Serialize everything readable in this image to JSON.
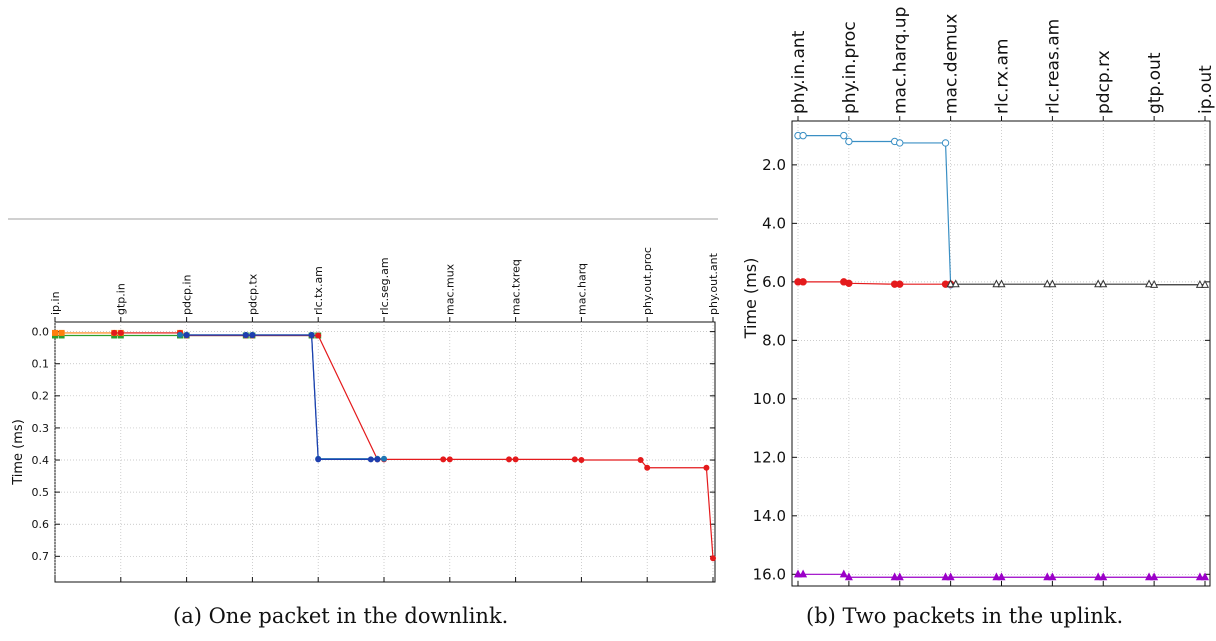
{
  "captions": {
    "a": "(a) One packet in the downlink.",
    "b": "(b) Two packets in the uplink."
  },
  "chart_data": [
    {
      "type": "line",
      "ylabel": "Time (ms)",
      "xlabel": "",
      "y_inverted": true,
      "ylim": [
        -0.03,
        0.78
      ],
      "y_ticks": [
        "0.0",
        "0.1",
        "0.2",
        "0.3",
        "0.4",
        "0.5",
        "0.6",
        "0.7"
      ],
      "y_tick_values": [
        0.0,
        0.1,
        0.2,
        0.3,
        0.4,
        0.5,
        0.6,
        0.7
      ],
      "grid": true,
      "categories": [
        "ip.in",
        "gtp.in",
        "pdcp.in",
        "pdcp.tx",
        "rlc.tx.am",
        "rlc.seg.am",
        "mac.mux",
        "mac.txreq",
        "mac.harq",
        "phy.out.proc",
        "phy.out.ant"
      ],
      "series": [
        {
          "color": "#2ca02c",
          "marker": "square",
          "x": [
            0.0,
            0.1,
            0.9,
            1.0,
            1.9,
            2.0,
            2.9,
            3.0,
            3.9,
            4.0
          ],
          "y": [
            0.012,
            0.012,
            0.012,
            0.012,
            0.012,
            0.012,
            0.012,
            0.012,
            0.012,
            0.012
          ]
        },
        {
          "color": "#ff7f0e",
          "marker": "square",
          "x": [
            0.0,
            0.1,
            0.9,
            1.0,
            1.9
          ],
          "y": [
            0.004,
            0.004,
            0.004,
            0.004,
            0.004
          ]
        },
        {
          "color": "#e41a1c",
          "marker": "circle",
          "x": [
            0.9,
            1.0,
            1.9,
            2.0,
            2.9,
            3.0,
            3.9,
            4.0,
            4.9,
            5.0,
            5.9,
            6.0,
            6.9,
            7.0,
            7.9,
            8.0,
            8.9,
            9.0,
            9.9,
            10.0
          ],
          "y": [
            0.004,
            0.004,
            0.004,
            0.012,
            0.012,
            0.012,
            0.012,
            0.012,
            0.398,
            0.398,
            0.398,
            0.398,
            0.398,
            0.398,
            0.398,
            0.4,
            0.4,
            0.424,
            0.424,
            0.706
          ]
        },
        {
          "color": "#1f77b4",
          "marker": "circle",
          "x": [
            1.9,
            2.0,
            2.9,
            3.0,
            3.9,
            4.0,
            4.9,
            5.0
          ],
          "y": [
            0.01,
            0.01,
            0.01,
            0.01,
            0.01,
            0.396,
            0.396,
            0.396
          ]
        },
        {
          "color": "#1e3fae",
          "marker": "circle",
          "x": [
            2.0,
            2.9,
            3.0,
            3.9,
            4.0,
            4.8,
            4.9
          ],
          "y": [
            0.011,
            0.011,
            0.011,
            0.011,
            0.398,
            0.398,
            0.398
          ]
        }
      ]
    },
    {
      "type": "line",
      "ylabel": "Time (ms)",
      "xlabel": "",
      "y_inverted": true,
      "ylim": [
        0.5,
        16.4
      ],
      "y_ticks": [
        "2.0",
        "4.0",
        "6.0",
        "8.0",
        "10.0",
        "12.0",
        "14.0",
        "16.0"
      ],
      "y_tick_values": [
        2,
        4,
        6,
        8,
        10,
        12,
        14,
        16
      ],
      "grid": true,
      "categories": [
        "phy.in.ant",
        "phy.in.proc",
        "mac.harq.up",
        "mac.demux",
        "rlc.rx.am",
        "rlc.reas.am",
        "pdcp.rx",
        "gtp.out",
        "ip.out"
      ],
      "series": [
        {
          "color": "#3a8fc4",
          "marker": "circle-open",
          "x": [
            0.0,
            0.1,
            0.9,
            1.0,
            1.9,
            2.0,
            2.9,
            3.0
          ],
          "y": [
            1.0,
            1.0,
            1.0,
            1.2,
            1.2,
            1.25,
            1.25,
            6.1
          ]
        },
        {
          "color": "#e41a1c",
          "marker": "circle",
          "x": [
            0.0,
            0.1,
            0.9,
            1.0,
            1.9,
            2.0,
            2.9,
            3.0
          ],
          "y": [
            6.0,
            6.0,
            6.0,
            6.05,
            6.08,
            6.08,
            6.08,
            6.08
          ]
        },
        {
          "color": "#333333",
          "marker": "triangle-open",
          "x": [
            3.0,
            3.1,
            3.9,
            4.0,
            4.9,
            5.0,
            5.9,
            6.0,
            6.9,
            7.0,
            7.9,
            8.0
          ],
          "y": [
            6.08,
            6.08,
            6.08,
            6.08,
            6.08,
            6.08,
            6.08,
            6.08,
            6.08,
            6.1,
            6.1,
            6.1
          ]
        },
        {
          "color": "#9b00c8",
          "marker": "triangle",
          "x": [
            0.0,
            0.1,
            0.9,
            1.0,
            1.9,
            2.0,
            2.9,
            3.0,
            3.9,
            4.0,
            4.9,
            5.0,
            5.9,
            6.0,
            6.9,
            7.0,
            7.9,
            8.0
          ],
          "y": [
            16.0,
            16.0,
            16.0,
            16.1,
            16.1,
            16.1,
            16.1,
            16.1,
            16.1,
            16.1,
            16.1,
            16.1,
            16.1,
            16.1,
            16.1,
            16.1,
            16.1,
            16.1
          ]
        }
      ]
    }
  ]
}
